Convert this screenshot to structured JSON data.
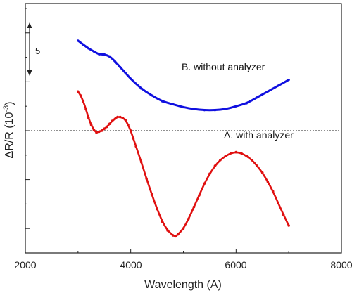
{
  "chart_data": {
    "type": "scatter",
    "xlabel": "Wavelength (A)",
    "ylabel_base": "ΔR/R (10",
    "ylabel_exp": "-3",
    "ylabel_close": ")",
    "xlim": [
      2000,
      8000
    ],
    "x_ticks": [
      "2000",
      "4000",
      "6000",
      "8000"
    ],
    "y_unit_per_step": 5,
    "scale_bar_label": "5",
    "ylim": [
      -12.5,
      13
    ],
    "baseline": 0,
    "series": [
      {
        "name": "B. without analyzer",
        "color": "#1010e0",
        "x": [
          3000,
          3100,
          3200,
          3300,
          3400,
          3500,
          3600,
          3700,
          3800,
          3900,
          4000,
          4200,
          4400,
          4600,
          4800,
          5000,
          5200,
          5400,
          5600,
          5800,
          6000,
          6200,
          6400,
          6600,
          6800,
          7000
        ],
        "y": [
          9.2,
          8.8,
          8.4,
          8.1,
          7.8,
          7.8,
          7.6,
          7.1,
          6.5,
          5.9,
          5.3,
          4.3,
          3.6,
          3.0,
          2.7,
          2.4,
          2.2,
          2.1,
          2.1,
          2.2,
          2.5,
          2.8,
          3.4,
          4.0,
          4.6,
          5.2
        ]
      },
      {
        "name": "A. with analyzer",
        "color": "#e01010",
        "x": [
          3000,
          3050,
          3100,
          3150,
          3200,
          3250,
          3300,
          3350,
          3400,
          3450,
          3500,
          3550,
          3600,
          3650,
          3700,
          3750,
          3800,
          3850,
          3900,
          3950,
          4000,
          4050,
          4100,
          4200,
          4300,
          4400,
          4500,
          4600,
          4700,
          4800,
          4850,
          4900,
          5000,
          5100,
          5200,
          5300,
          5400,
          5500,
          5600,
          5700,
          5800,
          5900,
          6000,
          6100,
          6200,
          6300,
          6400,
          6500,
          6600,
          6700,
          6800,
          6900,
          7000
        ],
        "y": [
          4.0,
          3.6,
          3.0,
          2.2,
          1.3,
          0.6,
          0.1,
          -0.2,
          -0.1,
          0.0,
          0.2,
          0.4,
          0.7,
          1.0,
          1.2,
          1.4,
          1.4,
          1.3,
          1.1,
          0.6,
          0.0,
          -0.8,
          -1.6,
          -3.2,
          -4.9,
          -6.5,
          -8.0,
          -9.3,
          -10.2,
          -10.7,
          -10.8,
          -10.6,
          -10.0,
          -9.0,
          -7.8,
          -6.6,
          -5.4,
          -4.4,
          -3.6,
          -3.0,
          -2.6,
          -2.3,
          -2.2,
          -2.3,
          -2.6,
          -3.0,
          -3.6,
          -4.3,
          -5.2,
          -6.2,
          -7.4,
          -8.6,
          -9.7
        ]
      }
    ],
    "grid": false
  }
}
